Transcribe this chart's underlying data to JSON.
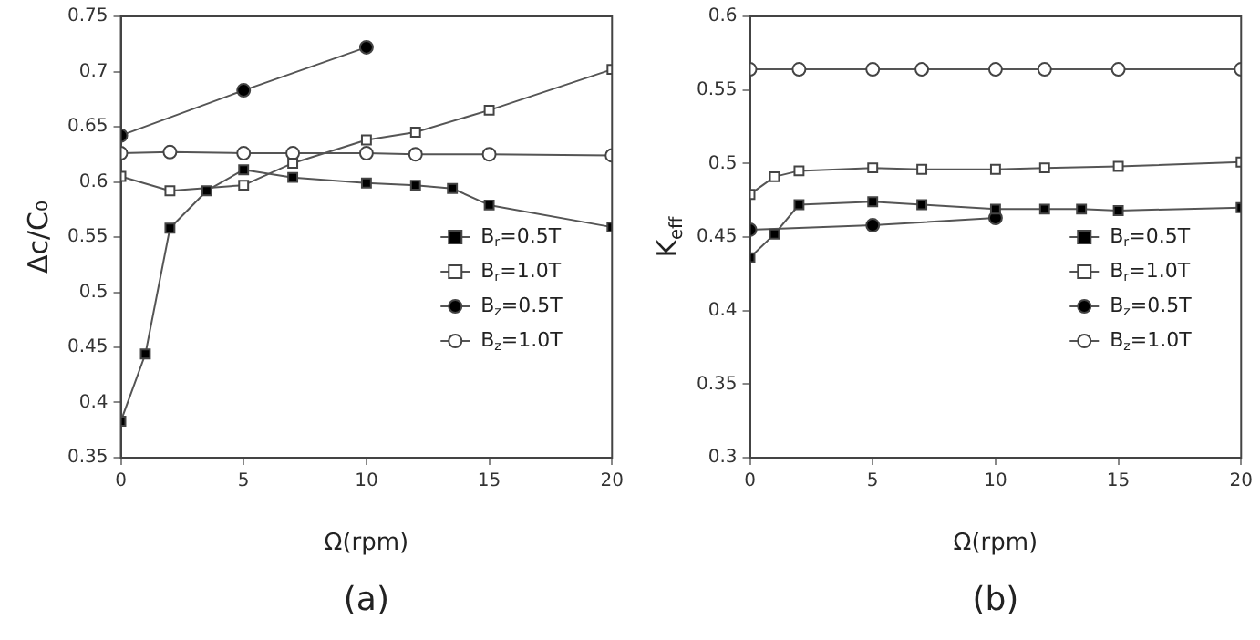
{
  "chart_data": [
    {
      "type": "line",
      "xlabel": "Ω(rpm)",
      "ylabel": "Δc/C₀",
      "annotations": [
        "(a)"
      ],
      "xlim": [
        0,
        20
      ],
      "xticks": [
        0,
        5,
        10,
        15,
        20
      ],
      "ylim": [
        0.35,
        0.75
      ],
      "yticks": [
        0.35,
        0.4,
        0.45,
        0.5,
        0.55,
        0.6,
        0.65,
        0.7,
        0.75
      ],
      "grid": false,
      "legend": "bottom right",
      "series": [
        {
          "name": "B$_{r}$=0.5T",
          "marker": "square",
          "color": "#000000",
          "x": [
            0,
            1,
            2,
            3.5,
            5,
            7,
            10,
            12,
            13.5,
            15,
            20
          ],
          "values": [
            0.383,
            0.444,
            0.558,
            0.592,
            0.611,
            0.604,
            0.599,
            0.597,
            0.594,
            0.579,
            0.559
          ]
        },
        {
          "name": "B$_{r}$=1.0T",
          "marker": "square",
          "color": "#ffffff",
          "x": [
            0,
            2,
            5,
            7,
            10,
            12,
            15,
            20
          ],
          "values": [
            0.605,
            0.592,
            0.597,
            0.617,
            0.638,
            0.645,
            0.665,
            0.702
          ]
        },
        {
          "name": "B$_{z}$=0.5T",
          "marker": "circle",
          "color": "#000000",
          "x": [
            0,
            5,
            10
          ],
          "values": [
            0.642,
            0.683,
            0.722
          ]
        },
        {
          "name": "B$_{z}$=1.0T",
          "marker": "circle",
          "color": "#ffffff",
          "x": [
            0,
            2,
            5,
            7,
            10,
            12,
            15,
            20
          ],
          "values": [
            0.626,
            0.627,
            0.626,
            0.626,
            0.626,
            0.625,
            0.625,
            0.624
          ]
        }
      ]
    },
    {
      "type": "line",
      "xlabel": "Ω(rpm)",
      "ylabel": "K$_{eff}$",
      "annotations": [
        "(b)"
      ],
      "xlim": [
        0,
        20
      ],
      "xticks": [
        0,
        5,
        10,
        15,
        20
      ],
      "ylim": [
        0.3,
        0.6
      ],
      "yticks": [
        0.3,
        0.35,
        0.4,
        0.45,
        0.5,
        0.55,
        0.6
      ],
      "grid": false,
      "legend": "bottom right",
      "series": [
        {
          "name": "B$_{r}$=0.5T",
          "marker": "square",
          "color": "#000000",
          "x": [
            0,
            1,
            2,
            5,
            7,
            10,
            12,
            13.5,
            15,
            20
          ],
          "values": [
            0.436,
            0.452,
            0.472,
            0.474,
            0.472,
            0.469,
            0.469,
            0.469,
            0.468,
            0.47
          ]
        },
        {
          "name": "B$_{r}$=1.0T",
          "marker": "square",
          "color": "#ffffff",
          "x": [
            0,
            1,
            2,
            5,
            7,
            10,
            12,
            15,
            20
          ],
          "values": [
            0.479,
            0.491,
            0.495,
            0.497,
            0.496,
            0.496,
            0.497,
            0.498,
            0.501
          ]
        },
        {
          "name": "B$_{z}$=0.5T",
          "marker": "circle",
          "color": "#000000",
          "x": [
            0,
            5,
            10
          ],
          "values": [
            0.455,
            0.458,
            0.463
          ]
        },
        {
          "name": "B$_{z}$=1.0T",
          "marker": "circle",
          "color": "#ffffff",
          "x": [
            0,
            2,
            5,
            7,
            10,
            12,
            15,
            20
          ],
          "values": [
            0.564,
            0.564,
            0.564,
            0.564,
            0.564,
            0.564,
            0.564,
            0.564
          ]
        }
      ]
    }
  ]
}
